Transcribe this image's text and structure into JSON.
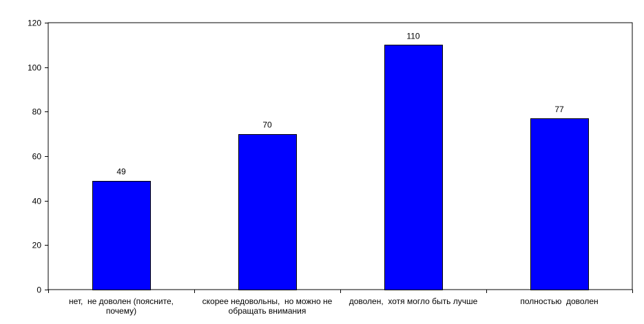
{
  "chart_data": {
    "type": "bar",
    "title": "",
    "xlabel": "",
    "ylabel": "",
    "categories": [
      [
        "нет,  не доволен (поясните,",
        "почему)"
      ],
      [
        "скорее недовольны,  но можно не",
        "обращать внимания"
      ],
      [
        "доволен,  хотя могло быть лучше"
      ],
      [
        "полностью  доволен"
      ]
    ],
    "values": [
      49,
      70,
      110,
      77
    ],
    "ylim": [
      0,
      120
    ],
    "yticks": [
      0,
      20,
      40,
      60,
      80,
      100,
      120
    ],
    "grid": false,
    "legend": "none",
    "data_labels": true,
    "colors": {
      "bar": "#0000ff",
      "bar_edge": "#000000",
      "axis": "#000000",
      "frame": "#000000"
    }
  }
}
